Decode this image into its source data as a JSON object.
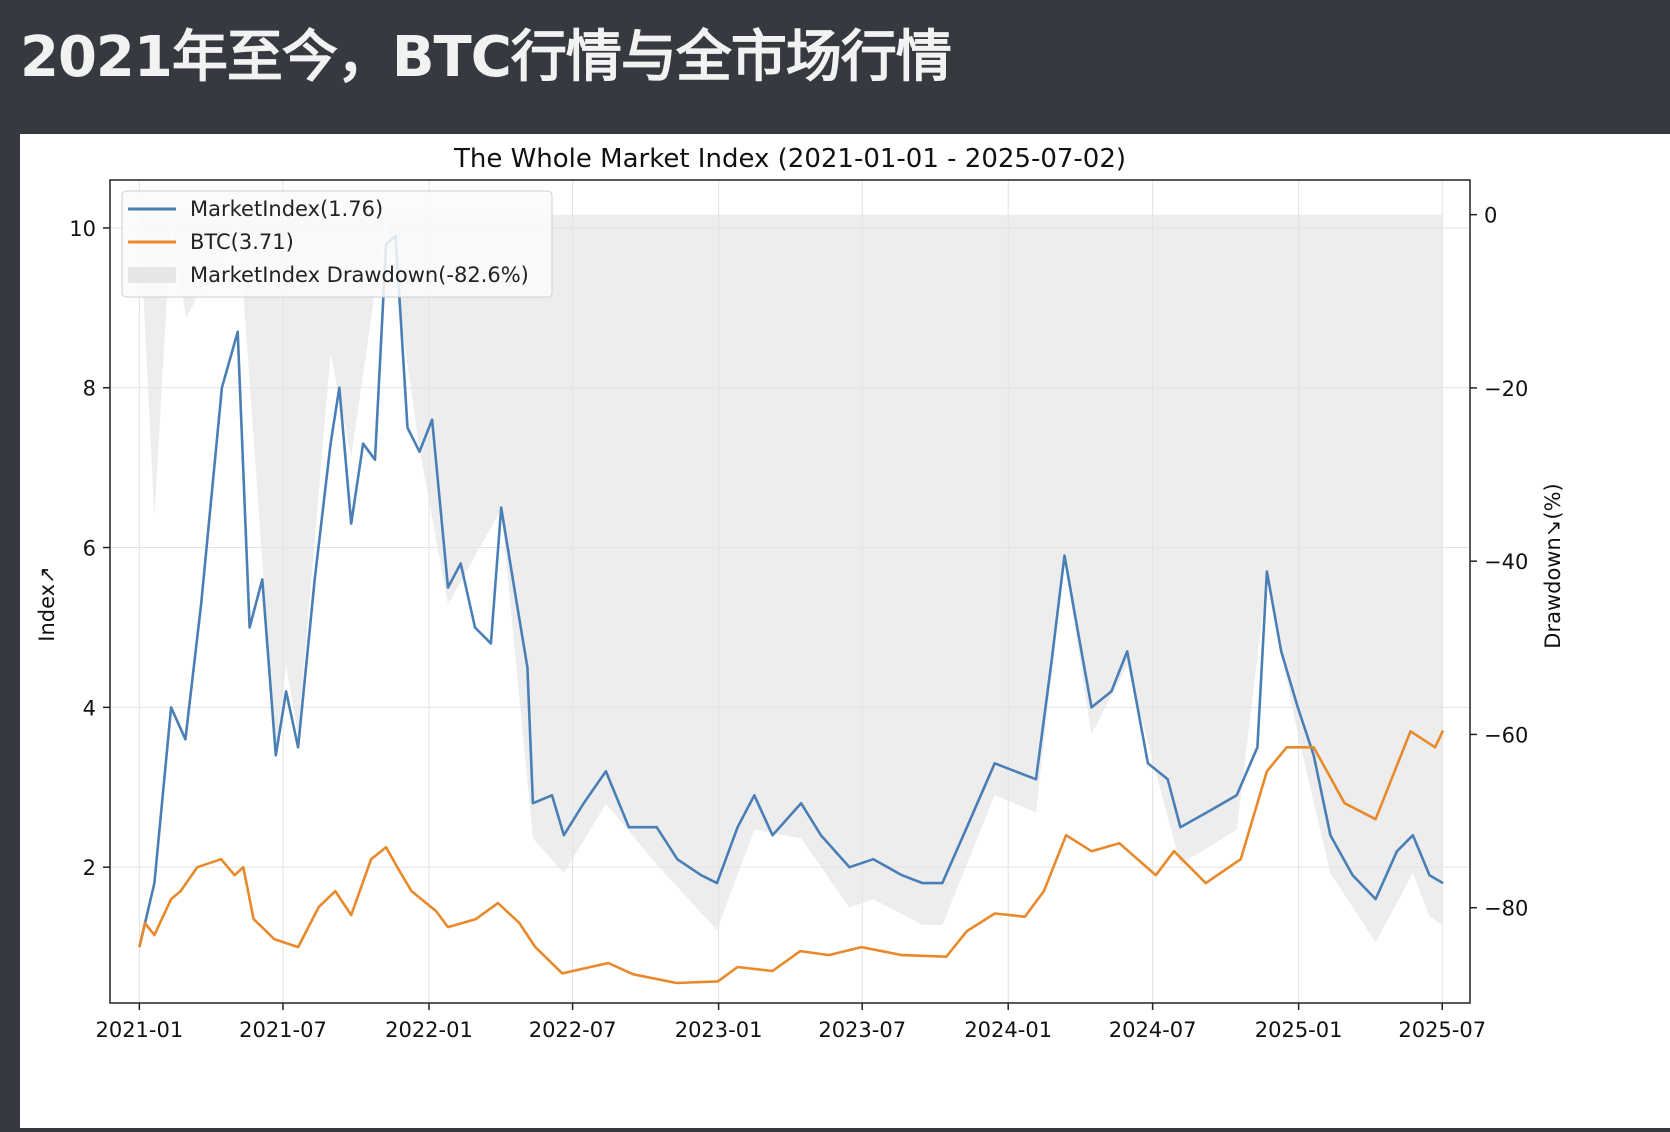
{
  "slide": {
    "title": "2021年至今，BTC行情与全市场行情",
    "background": "#36393f"
  },
  "chart_data": {
    "type": "line",
    "title": "The Whole Market Index (2021-01-01 - 2025-07-02)",
    "ylabel": "Index↗",
    "y2label": "Drawdown↘(%)",
    "ylim": [
      0.3,
      10.6
    ],
    "y2lim": [
      -91,
      4
    ],
    "xlim": [
      "2020-11-25",
      "2025-08-05"
    ],
    "xticks": [
      "2021-01",
      "2021-07",
      "2022-01",
      "2022-07",
      "2023-01",
      "2023-07",
      "2024-01",
      "2024-07",
      "2025-01",
      "2025-07"
    ],
    "yticks": [
      2,
      4,
      6,
      8,
      10
    ],
    "y2ticks": [
      0,
      -20,
      -40,
      -60,
      -80
    ],
    "grid": true,
    "legend_position": "top-left",
    "series": [
      {
        "name": "MarketIndex(1.76)",
        "color": "#4a7fb5",
        "axis": "left",
        "points": [
          [
            "2021-01-01",
            1.0
          ],
          [
            "2021-01-20",
            1.8
          ],
          [
            "2021-02-10",
            4.0
          ],
          [
            "2021-02-28",
            3.6
          ],
          [
            "2021-03-20",
            5.3
          ],
          [
            "2021-04-15",
            8.0
          ],
          [
            "2021-05-05",
            8.7
          ],
          [
            "2021-05-20",
            5.0
          ],
          [
            "2021-06-05",
            5.6
          ],
          [
            "2021-06-22",
            3.4
          ],
          [
            "2021-07-05",
            4.2
          ],
          [
            "2021-07-20",
            3.5
          ],
          [
            "2021-08-10",
            5.6
          ],
          [
            "2021-08-30",
            7.3
          ],
          [
            "2021-09-10",
            8.0
          ],
          [
            "2021-09-25",
            6.3
          ],
          [
            "2021-10-10",
            7.3
          ],
          [
            "2021-10-25",
            7.1
          ],
          [
            "2021-11-08",
            9.8
          ],
          [
            "2021-11-20",
            9.9
          ],
          [
            "2021-12-05",
            7.5
          ],
          [
            "2021-12-20",
            7.2
          ],
          [
            "2022-01-05",
            7.6
          ],
          [
            "2022-01-25",
            5.5
          ],
          [
            "2022-02-10",
            5.8
          ],
          [
            "2022-02-28",
            5.0
          ],
          [
            "2022-03-20",
            4.8
          ],
          [
            "2022-04-02",
            6.5
          ],
          [
            "2022-04-20",
            5.4
          ],
          [
            "2022-05-05",
            4.5
          ],
          [
            "2022-05-12",
            2.8
          ],
          [
            "2022-06-05",
            2.9
          ],
          [
            "2022-06-20",
            2.4
          ],
          [
            "2022-07-15",
            2.8
          ],
          [
            "2022-08-12",
            3.2
          ],
          [
            "2022-09-10",
            2.5
          ],
          [
            "2022-10-15",
            2.5
          ],
          [
            "2022-11-10",
            2.1
          ],
          [
            "2022-12-10",
            1.9
          ],
          [
            "2022-12-30",
            1.8
          ],
          [
            "2023-01-25",
            2.5
          ],
          [
            "2023-02-15",
            2.9
          ],
          [
            "2023-03-10",
            2.4
          ],
          [
            "2023-04-15",
            2.8
          ],
          [
            "2023-05-10",
            2.4
          ],
          [
            "2023-06-15",
            2.0
          ],
          [
            "2023-07-15",
            2.1
          ],
          [
            "2023-08-20",
            1.9
          ],
          [
            "2023-09-15",
            1.8
          ],
          [
            "2023-10-10",
            1.8
          ],
          [
            "2023-11-10",
            2.5
          ],
          [
            "2023-12-15",
            3.3
          ],
          [
            "2024-01-10",
            3.2
          ],
          [
            "2024-02-05",
            3.1
          ],
          [
            "2024-02-25",
            4.6
          ],
          [
            "2024-03-12",
            5.9
          ],
          [
            "2024-03-28",
            5.0
          ],
          [
            "2024-04-15",
            4.0
          ],
          [
            "2024-05-10",
            4.2
          ],
          [
            "2024-05-30",
            4.7
          ],
          [
            "2024-06-25",
            3.3
          ],
          [
            "2024-07-20",
            3.1
          ],
          [
            "2024-08-05",
            2.5
          ],
          [
            "2024-09-10",
            2.7
          ],
          [
            "2024-10-15",
            2.9
          ],
          [
            "2024-11-10",
            3.5
          ],
          [
            "2024-11-22",
            5.7
          ],
          [
            "2024-12-10",
            4.7
          ],
          [
            "2024-12-31",
            4.0
          ],
          [
            "2025-01-20",
            3.4
          ],
          [
            "2025-02-10",
            2.4
          ],
          [
            "2025-03-10",
            1.9
          ],
          [
            "2025-04-08",
            1.6
          ],
          [
            "2025-05-05",
            2.2
          ],
          [
            "2025-05-25",
            2.4
          ],
          [
            "2025-06-15",
            1.9
          ],
          [
            "2025-07-02",
            1.8
          ]
        ]
      },
      {
        "name": "BTC(3.71)",
        "color": "#e8892b",
        "axis": "left",
        "points": [
          [
            "2021-01-01",
            1.0
          ],
          [
            "2021-01-08",
            1.3
          ],
          [
            "2021-01-20",
            1.15
          ],
          [
            "2021-02-10",
            1.6
          ],
          [
            "2021-02-22",
            1.7
          ],
          [
            "2021-03-15",
            2.0
          ],
          [
            "2021-04-14",
            2.1
          ],
          [
            "2021-05-01",
            1.9
          ],
          [
            "2021-05-12",
            2.0
          ],
          [
            "2021-05-25",
            1.35
          ],
          [
            "2021-06-20",
            1.1
          ],
          [
            "2021-07-20",
            1.0
          ],
          [
            "2021-08-15",
            1.5
          ],
          [
            "2021-09-05",
            1.7
          ],
          [
            "2021-09-25",
            1.4
          ],
          [
            "2021-10-20",
            2.1
          ],
          [
            "2021-11-08",
            2.25
          ],
          [
            "2021-11-25",
            1.95
          ],
          [
            "2021-12-10",
            1.7
          ],
          [
            "2022-01-10",
            1.45
          ],
          [
            "2022-01-25",
            1.25
          ],
          [
            "2022-03-01",
            1.35
          ],
          [
            "2022-03-29",
            1.55
          ],
          [
            "2022-04-25",
            1.3
          ],
          [
            "2022-05-15",
            1.0
          ],
          [
            "2022-06-18",
            0.67
          ],
          [
            "2022-08-15",
            0.8
          ],
          [
            "2022-09-15",
            0.66
          ],
          [
            "2022-11-09",
            0.55
          ],
          [
            "2022-12-31",
            0.57
          ],
          [
            "2023-01-25",
            0.75
          ],
          [
            "2023-03-10",
            0.7
          ],
          [
            "2023-04-14",
            0.95
          ],
          [
            "2023-05-20",
            0.9
          ],
          [
            "2023-06-30",
            1.0
          ],
          [
            "2023-08-20",
            0.9
          ],
          [
            "2023-10-15",
            0.88
          ],
          [
            "2023-11-10",
            1.2
          ],
          [
            "2023-12-15",
            1.42
          ],
          [
            "2024-01-22",
            1.38
          ],
          [
            "2024-02-15",
            1.7
          ],
          [
            "2024-03-14",
            2.4
          ],
          [
            "2024-04-15",
            2.2
          ],
          [
            "2024-05-20",
            2.3
          ],
          [
            "2024-07-05",
            1.9
          ],
          [
            "2024-07-28",
            2.2
          ],
          [
            "2024-09-06",
            1.8
          ],
          [
            "2024-10-20",
            2.1
          ],
          [
            "2024-11-22",
            3.2
          ],
          [
            "2024-12-17",
            3.5
          ],
          [
            "2025-01-20",
            3.5
          ],
          [
            "2025-02-28",
            2.8
          ],
          [
            "2025-04-08",
            2.6
          ],
          [
            "2025-05-22",
            3.7
          ],
          [
            "2025-06-22",
            3.5
          ],
          [
            "2025-07-02",
            3.71
          ]
        ]
      },
      {
        "name": "MarketIndex Drawdown(-82.6%)",
        "color": "#e3e3e3",
        "axis": "right",
        "style": "fill",
        "points": [
          [
            "2021-01-01",
            0
          ],
          [
            "2021-01-20",
            -35
          ],
          [
            "2021-02-10",
            -1
          ],
          [
            "2021-03-01",
            -12
          ],
          [
            "2021-05-05",
            0
          ],
          [
            "2021-06-22",
            -62
          ],
          [
            "2021-07-05",
            -52
          ],
          [
            "2021-07-20",
            -60
          ],
          [
            "2021-08-30",
            -16
          ],
          [
            "2021-09-25",
            -28
          ],
          [
            "2021-11-08",
            0
          ],
          [
            "2021-12-20",
            -27
          ],
          [
            "2022-01-25",
            -45
          ],
          [
            "2022-04-02",
            -34
          ],
          [
            "2022-05-12",
            -72
          ],
          [
            "2022-06-20",
            -76
          ],
          [
            "2022-08-12",
            -68
          ],
          [
            "2022-10-15",
            -75
          ],
          [
            "2022-12-30",
            -82.6
          ],
          [
            "2023-02-15",
            -71
          ],
          [
            "2023-04-15",
            -72
          ],
          [
            "2023-06-15",
            -80
          ],
          [
            "2023-07-15",
            -79
          ],
          [
            "2023-09-15",
            -82
          ],
          [
            "2023-10-10",
            -82
          ],
          [
            "2023-12-15",
            -67
          ],
          [
            "2024-02-05",
            -69
          ],
          [
            "2024-03-12",
            -40
          ],
          [
            "2024-04-15",
            -60
          ],
          [
            "2024-05-30",
            -52
          ],
          [
            "2024-08-05",
            -75
          ],
          [
            "2024-10-15",
            -71
          ],
          [
            "2024-11-22",
            -42
          ],
          [
            "2024-12-31",
            -60
          ],
          [
            "2025-02-10",
            -76
          ],
          [
            "2025-04-08",
            -84
          ],
          [
            "2025-05-25",
            -76
          ],
          [
            "2025-06-15",
            -81
          ],
          [
            "2025-07-02",
            -82
          ]
        ]
      }
    ]
  }
}
